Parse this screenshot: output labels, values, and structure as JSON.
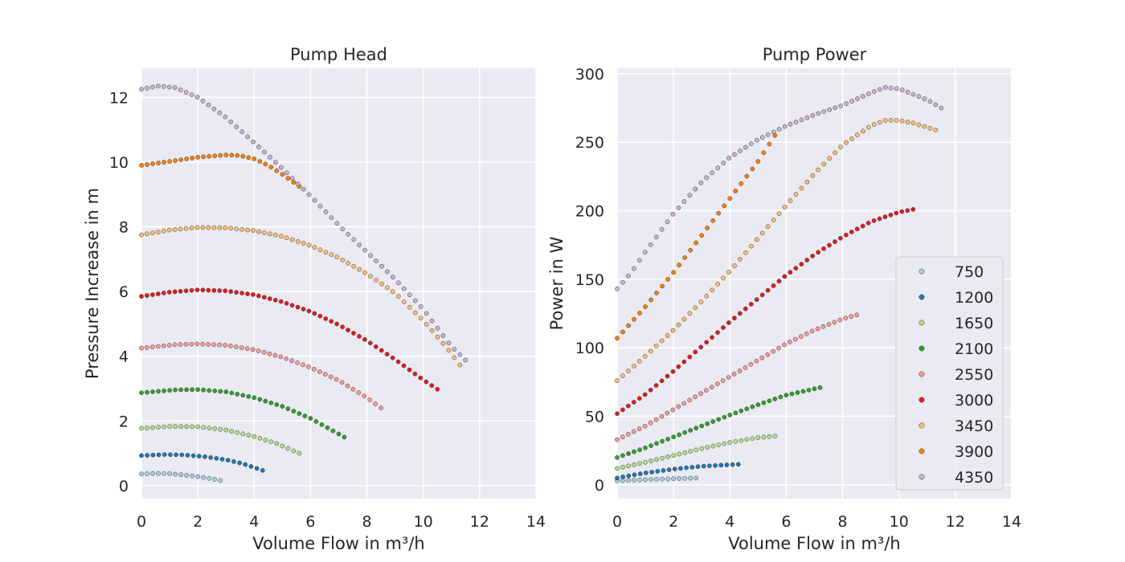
{
  "chart_data": {
    "type": "scatter",
    "speeds": [
      "750",
      "1200",
      "1650",
      "2100",
      "2550",
      "3000",
      "3450",
      "3900",
      "4350"
    ],
    "colors": {
      "750": "#a6cee3",
      "1200": "#1f78b4",
      "1650": "#b2df8a",
      "2100": "#33a02c",
      "2550": "#fb9a99",
      "3000": "#e31a1c",
      "3450": "#fdbf6f",
      "3900": "#ff7f00",
      "4350": "#cab2d6"
    },
    "charts": [
      {
        "id": "head",
        "title": "Pump Head",
        "xlabel": "Volume Flow in m³/h",
        "ylabel": "Pressure Increase in m",
        "xlim": [
          0,
          14
        ],
        "ylim": [
          -0.4,
          12.9
        ],
        "xticks": [
          0,
          2,
          4,
          6,
          8,
          10,
          12,
          14
        ],
        "yticks": [
          0,
          2,
          4,
          6,
          8,
          10,
          12
        ],
        "series": [
          {
            "name": "750",
            "xmax": 2.8,
            "points": [
              [
                0,
                0.36
              ],
              [
                0.5,
                0.38
              ],
              [
                1.0,
                0.37
              ],
              [
                1.5,
                0.33
              ],
              [
                2.0,
                0.28
              ],
              [
                2.5,
                0.21
              ],
              [
                2.8,
                0.16
              ]
            ]
          },
          {
            "name": "1200",
            "xmax": 4.3,
            "points": [
              [
                0,
                0.93
              ],
              [
                0.8,
                0.96
              ],
              [
                1.5,
                0.95
              ],
              [
                2.2,
                0.9
              ],
              [
                3.0,
                0.8
              ],
              [
                3.6,
                0.68
              ],
              [
                4.3,
                0.47
              ]
            ]
          },
          {
            "name": "1650",
            "xmax": 5.6,
            "points": [
              [
                0,
                1.77
              ],
              [
                1.0,
                1.83
              ],
              [
                2.0,
                1.82
              ],
              [
                3.0,
                1.72
              ],
              [
                4.0,
                1.52
              ],
              [
                4.8,
                1.3
              ],
              [
                5.6,
                1.0
              ]
            ]
          },
          {
            "name": "2100",
            "xmax": 7.2,
            "points": [
              [
                0,
                2.87
              ],
              [
                1.2,
                2.96
              ],
              [
                2.0,
                2.97
              ],
              [
                3.0,
                2.9
              ],
              [
                4.0,
                2.72
              ],
              [
                5.0,
                2.45
              ],
              [
                6.0,
                2.08
              ],
              [
                7.2,
                1.5
              ]
            ]
          },
          {
            "name": "2550",
            "xmax": 8.5,
            "points": [
              [
                0,
                4.25
              ],
              [
                1.2,
                4.36
              ],
              [
                2.0,
                4.38
              ],
              [
                3.0,
                4.34
              ],
              [
                4.0,
                4.2
              ],
              [
                5.0,
                3.97
              ],
              [
                6.0,
                3.65
              ],
              [
                7.0,
                3.25
              ],
              [
                8.0,
                2.72
              ],
              [
                8.5,
                2.4
              ]
            ]
          },
          {
            "name": "3000",
            "xmax": 10.5,
            "points": [
              [
                0,
                5.85
              ],
              [
                1.0,
                5.98
              ],
              [
                2.0,
                6.05
              ],
              [
                3.0,
                6.02
              ],
              [
                4.0,
                5.9
              ],
              [
                5.0,
                5.68
              ],
              [
                6.0,
                5.38
              ],
              [
                7.0,
                4.97
              ],
              [
                8.0,
                4.48
              ],
              [
                9.0,
                3.9
              ],
              [
                10.0,
                3.27
              ],
              [
                10.5,
                2.98
              ]
            ]
          },
          {
            "name": "3450",
            "xmax": 11.3,
            "points": [
              [
                0,
                7.75
              ],
              [
                1.0,
                7.9
              ],
              [
                2.0,
                7.98
              ],
              [
                3.0,
                7.97
              ],
              [
                4.0,
                7.88
              ],
              [
                5.0,
                7.7
              ],
              [
                6.0,
                7.42
              ],
              [
                7.0,
                7.04
              ],
              [
                8.0,
                6.55
              ],
              [
                9.0,
                5.95
              ],
              [
                10.0,
                5.1
              ],
              [
                10.8,
                4.3
              ],
              [
                11.3,
                3.73
              ]
            ]
          },
          {
            "name": "3900",
            "xmax": 5.6,
            "points": [
              [
                0,
                9.9
              ],
              [
                1.0,
                10.02
              ],
              [
                2.0,
                10.15
              ],
              [
                3.0,
                10.22
              ],
              [
                3.5,
                10.2
              ],
              [
                4.0,
                10.1
              ],
              [
                4.5,
                9.9
              ],
              [
                5.0,
                9.62
              ],
              [
                5.6,
                9.25
              ]
            ]
          },
          {
            "name": "4350",
            "xmax": 11.5,
            "points": [
              [
                0,
                12.25
              ],
              [
                0.6,
                12.35
              ],
              [
                1.2,
                12.3
              ],
              [
                2.0,
                12.0
              ],
              [
                3.0,
                11.38
              ],
              [
                4.0,
                10.6
              ],
              [
                5.0,
                9.8
              ],
              [
                6.0,
                8.95
              ],
              [
                7.0,
                8.05
              ],
              [
                8.0,
                7.22
              ],
              [
                9.0,
                6.38
              ],
              [
                10.0,
                5.45
              ],
              [
                11.0,
                4.3
              ],
              [
                11.5,
                3.88
              ]
            ]
          }
        ]
      },
      {
        "id": "power",
        "title": "Pump Power",
        "xlabel": "Volume Flow in m³/h",
        "ylabel": "Power in W",
        "xlim": [
          0,
          14
        ],
        "ylim": [
          -10,
          304
        ],
        "xticks": [
          0,
          2,
          4,
          6,
          8,
          10,
          12,
          14
        ],
        "yticks": [
          0,
          50,
          100,
          150,
          200,
          250,
          300
        ],
        "series": [
          {
            "name": "750",
            "xmax": 2.8,
            "points": [
              [
                0,
                3
              ],
              [
                1.0,
                3.8
              ],
              [
                2.0,
                4.5
              ],
              [
                2.8,
                5
              ]
            ]
          },
          {
            "name": "1200",
            "xmax": 4.3,
            "points": [
              [
                0,
                5
              ],
              [
                0.5,
                7
              ],
              [
                1.0,
                8.7
              ],
              [
                2.0,
                11.5
              ],
              [
                3.0,
                13.6
              ],
              [
                4.3,
                15
              ]
            ]
          },
          {
            "name": "1650",
            "xmax": 5.6,
            "points": [
              [
                0,
                12
              ],
              [
                1.0,
                16.5
              ],
              [
                2.0,
                21.5
              ],
              [
                3.0,
                26.5
              ],
              [
                4.0,
                31
              ],
              [
                5.0,
                34.5
              ],
              [
                5.6,
                35.5
              ]
            ]
          },
          {
            "name": "2100",
            "xmax": 7.2,
            "points": [
              [
                0,
                20
              ],
              [
                1.0,
                27
              ],
              [
                2.0,
                35
              ],
              [
                3.0,
                43
              ],
              [
                4.0,
                51
              ],
              [
                5.0,
                58.5
              ],
              [
                6.0,
                65.5
              ],
              [
                7.2,
                71
              ]
            ]
          },
          {
            "name": "2550",
            "xmax": 8.5,
            "points": [
              [
                0,
                33
              ],
              [
                1.0,
                43
              ],
              [
                2.0,
                55
              ],
              [
                3.0,
                67
              ],
              [
                4.0,
                79
              ],
              [
                5.0,
                91
              ],
              [
                6.0,
                103
              ],
              [
                7.0,
                113
              ],
              [
                8.0,
                121
              ],
              [
                8.5,
                124
              ]
            ]
          },
          {
            "name": "3000",
            "xmax": 10.5,
            "points": [
              [
                0,
                52
              ],
              [
                1.0,
                66
              ],
              [
                2.0,
                83
              ],
              [
                3.0,
                101
              ],
              [
                4.0,
                119
              ],
              [
                5.0,
                136
              ],
              [
                6.0,
                153
              ],
              [
                7.0,
                168
              ],
              [
                8.0,
                181
              ],
              [
                9.0,
                192
              ],
              [
                10.0,
                199
              ],
              [
                10.5,
                201
              ]
            ]
          },
          {
            "name": "3450",
            "xmax": 11.3,
            "points": [
              [
                0,
                76
              ],
              [
                1.0,
                94
              ],
              [
                2.0,
                113
              ],
              [
                3.0,
                134
              ],
              [
                4.0,
                156
              ],
              [
                5.0,
                180
              ],
              [
                6.0,
                204
              ],
              [
                7.0,
                227
              ],
              [
                8.0,
                248
              ],
              [
                9.0,
                262
              ],
              [
                9.5,
                266
              ],
              [
                10.0,
                266
              ],
              [
                10.5,
                264
              ],
              [
                11.3,
                259
              ]
            ]
          },
          {
            "name": "3900",
            "xmax": 5.6,
            "points": [
              [
                0,
                107
              ],
              [
                1.0,
                130
              ],
              [
                2.0,
                155
              ],
              [
                3.0,
                182
              ],
              [
                4.0,
                209
              ],
              [
                5.0,
                236
              ],
              [
                5.6,
                255
              ]
            ]
          },
          {
            "name": "4350",
            "xmax": 11.5,
            "points": [
              [
                0,
                143
              ],
              [
                0.5,
                155
              ],
              [
                1.0,
                170
              ],
              [
                2.0,
                198
              ],
              [
                3.0,
                221
              ],
              [
                4.0,
                239
              ],
              [
                5.0,
                252
              ],
              [
                6.0,
                262
              ],
              [
                7.0,
                270
              ],
              [
                8.0,
                277
              ],
              [
                9.0,
                286
              ],
              [
                9.5,
                290
              ],
              [
                10.0,
                289
              ],
              [
                11.0,
                281
              ],
              [
                11.5,
                275
              ]
            ]
          }
        ]
      }
    ]
  }
}
